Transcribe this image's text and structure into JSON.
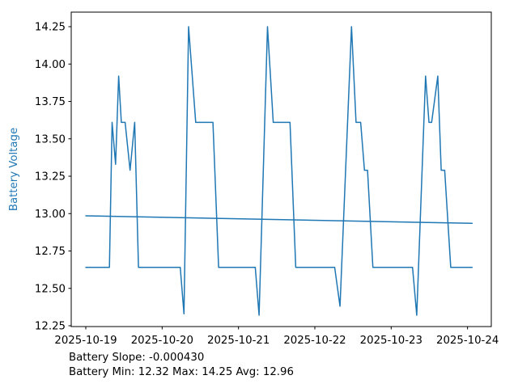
{
  "figure": {
    "background": "#ffffff",
    "line_color": "#1f77b4",
    "spine_color": "#000000",
    "tick_label_color": "#000000",
    "ylabel": "Battery Voltage",
    "ylabel_color": "#1f77b4",
    "annotation_line1": "Battery Slope: -0.000430",
    "annotation_line2": "Battery Min: 12.32 Max: 14.25 Avg: 12.96"
  },
  "chart_data": {
    "type": "line",
    "title": "",
    "xlabel": "",
    "ylabel": "Battery Voltage",
    "grid": false,
    "legend": "none",
    "x_unit": "days since 2025-10-19 00:00",
    "x_tick_labels": [
      "2025-10-19",
      "2025-10-20",
      "2025-10-21",
      "2025-10-22",
      "2025-10-23",
      "2025-10-24"
    ],
    "x_tick_days": [
      0,
      1,
      2,
      3,
      4,
      5
    ],
    "y_ticks": [
      12.25,
      12.5,
      12.75,
      13.0,
      13.25,
      13.5,
      13.75,
      14.0,
      14.25
    ],
    "xlim_days": [
      -0.19,
      5.31
    ],
    "ylim": [
      12.245,
      14.345
    ],
    "stats": {
      "slope": -0.00043,
      "min": 12.32,
      "max": 14.25,
      "avg": 12.96
    },
    "series": [
      {
        "name": "battery-voltage",
        "color": "#1f77b4",
        "points": [
          [
            0.0,
            12.64
          ],
          [
            0.31,
            12.64
          ],
          [
            0.345,
            13.61
          ],
          [
            0.39,
            13.33
          ],
          [
            0.43,
            13.92
          ],
          [
            0.465,
            13.61
          ],
          [
            0.515,
            13.61
          ],
          [
            0.58,
            13.29
          ],
          [
            0.64,
            13.61
          ],
          [
            0.69,
            12.64
          ],
          [
            1.237,
            12.64
          ],
          [
            1.286,
            12.33
          ],
          [
            1.346,
            14.25
          ],
          [
            1.44,
            13.61
          ],
          [
            1.665,
            13.61
          ],
          [
            1.74,
            12.64
          ],
          [
            2.22,
            12.64
          ],
          [
            2.27,
            12.32
          ],
          [
            2.38,
            14.25
          ],
          [
            2.455,
            13.61
          ],
          [
            2.675,
            13.61
          ],
          [
            2.75,
            12.64
          ],
          [
            3.26,
            12.64
          ],
          [
            3.33,
            12.38
          ],
          [
            3.48,
            14.25
          ],
          [
            3.54,
            13.61
          ],
          [
            3.6,
            13.61
          ],
          [
            3.65,
            13.29
          ],
          [
            3.69,
            13.29
          ],
          [
            3.76,
            12.64
          ],
          [
            4.28,
            12.64
          ],
          [
            4.335,
            12.32
          ],
          [
            4.45,
            13.92
          ],
          [
            4.495,
            13.61
          ],
          [
            4.53,
            13.61
          ],
          [
            4.61,
            13.92
          ],
          [
            4.655,
            13.29
          ],
          [
            4.7,
            13.29
          ],
          [
            4.78,
            12.64
          ],
          [
            5.06,
            12.64
          ]
        ]
      },
      {
        "name": "battery-trend",
        "color": "#1f77b4",
        "points": [
          [
            0.0,
            12.985
          ],
          [
            5.06,
            12.935
          ]
        ]
      }
    ]
  }
}
